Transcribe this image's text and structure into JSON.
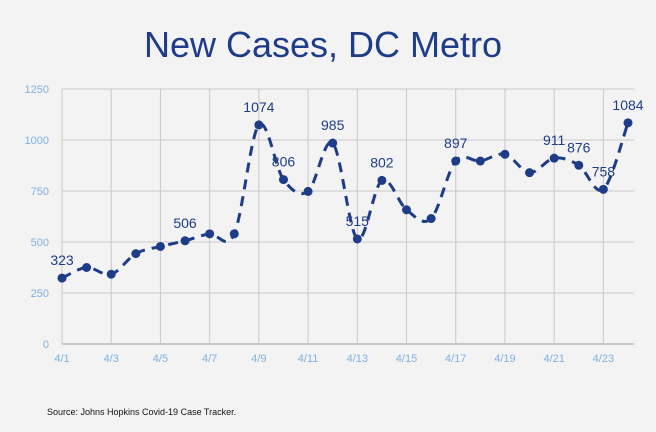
{
  "colors": {
    "series": "#1f3c88",
    "title": "#1f3c88",
    "tick_labels": "#7fb1e6",
    "background": "#f2f3f2"
  },
  "chart_data": {
    "type": "line",
    "title": "New Cases, DC Metro",
    "xlabel": "",
    "ylabel": "",
    "ylim": [
      0,
      1250
    ],
    "yticks": [
      "0",
      "250",
      "500",
      "750",
      "1000",
      "1250"
    ],
    "x_tick_labels": [
      "4/1",
      "4/3",
      "4/5",
      "4/7",
      "4/9",
      "4/11",
      "4/13",
      "4/15",
      "4/17",
      "4/19",
      "4/21",
      "4/23"
    ],
    "grid": true,
    "line_style": "dashed",
    "x": [
      "4/1",
      "4/2",
      "4/3",
      "4/4",
      "4/5",
      "4/6",
      "4/7",
      "4/8",
      "4/9",
      "4/10",
      "4/11",
      "4/12",
      "4/13",
      "4/14",
      "4/15",
      "4/16",
      "4/17",
      "4/18",
      "4/19",
      "4/20",
      "4/21",
      "4/22",
      "4/23",
      "4/24"
    ],
    "values": [
      323,
      375,
      342,
      443,
      478,
      506,
      540,
      540,
      1074,
      806,
      748,
      985,
      515,
      802,
      658,
      615,
      897,
      897,
      930,
      840,
      911,
      876,
      758,
      1084
    ],
    "data_labels": [
      {
        "index": 0,
        "text": "323"
      },
      {
        "index": 5,
        "text": "506"
      },
      {
        "index": 8,
        "text": "1074"
      },
      {
        "index": 9,
        "text": "806"
      },
      {
        "index": 11,
        "text": "985"
      },
      {
        "index": 12,
        "text": "515"
      },
      {
        "index": 13,
        "text": "802"
      },
      {
        "index": 16,
        "text": "897"
      },
      {
        "index": 20,
        "text": "911"
      },
      {
        "index": 21,
        "text": "876"
      },
      {
        "index": 22,
        "text": "758"
      },
      {
        "index": 23,
        "text": "1084"
      }
    ]
  },
  "source": "Source: Johns Hopkins Covid-19 Case Tracker."
}
